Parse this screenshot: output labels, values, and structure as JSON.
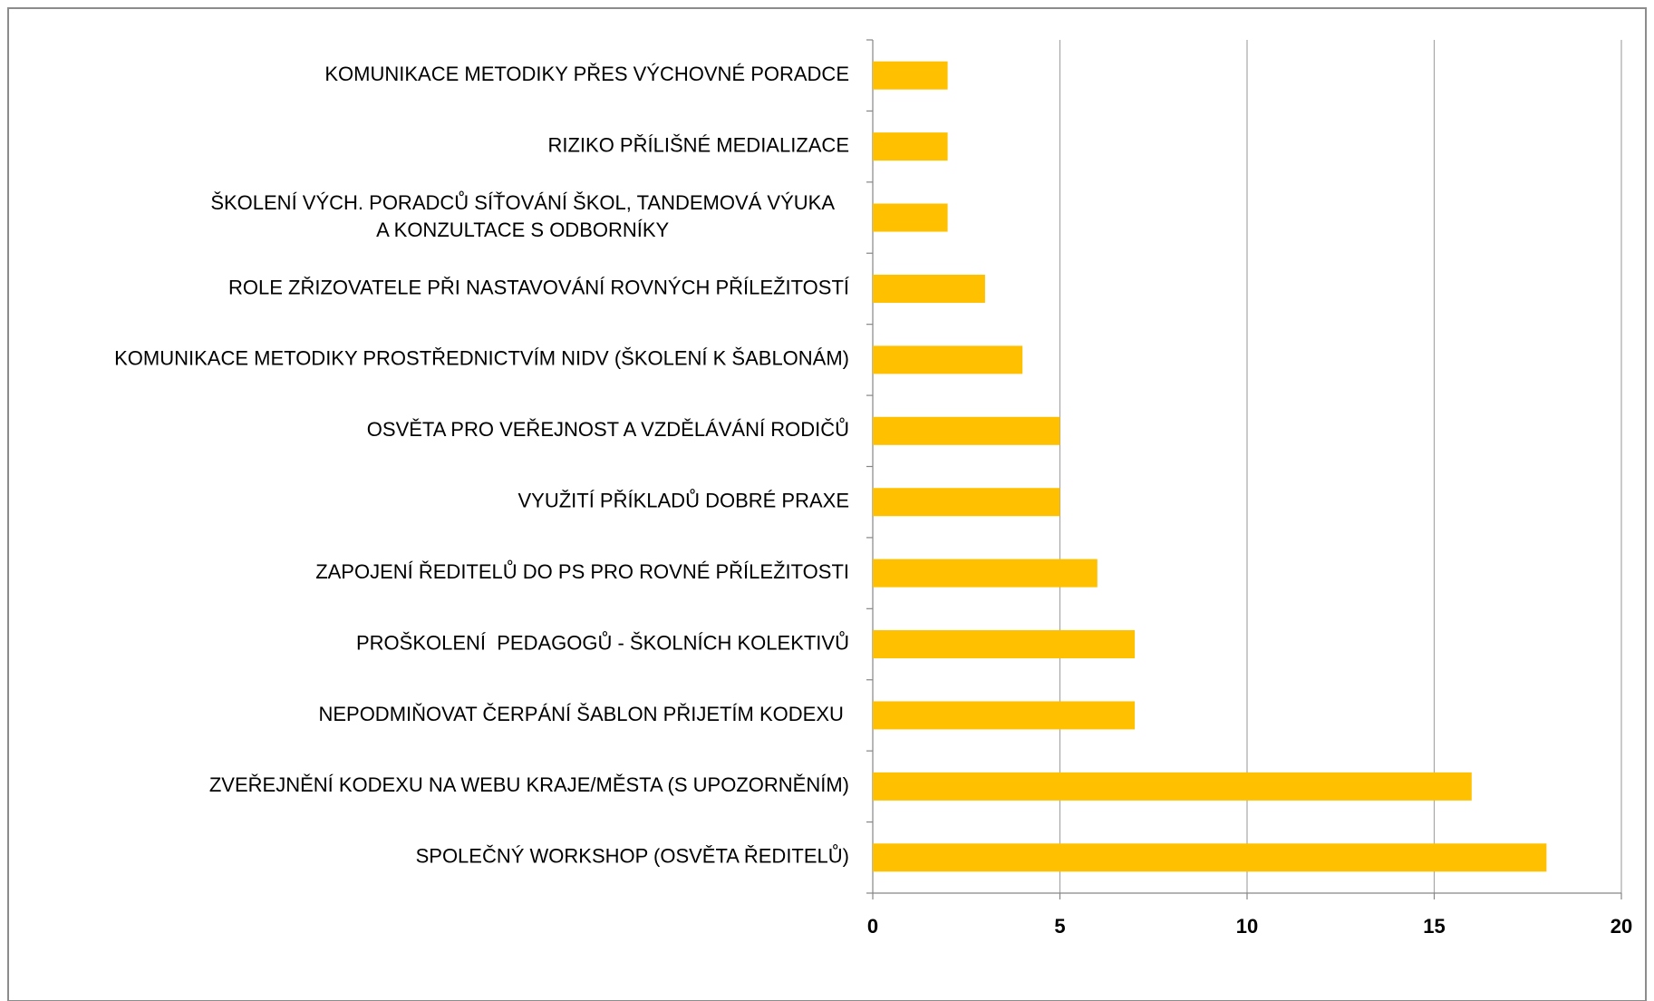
{
  "chart_data": {
    "type": "bar",
    "orientation": "horizontal",
    "categories": [
      "KOMUNIKACE METODIKY PŘES VÝCHOVNÉ PORADCE",
      "RIZIKO PŘÍLIŠNÉ MEDIALIZACE",
      "ŠKOLENÍ VÝCH. PORADCŮ SÍŤOVÁNÍ ŠKOL, TANDEMOVÁ VÝUKA\nA KONZULTACE S ODBORNÍKY",
      "ROLE ZŘIZOVATELE PŘI NASTAVOVÁNÍ ROVNÝCH PŘÍLEŽITOSTÍ",
      "KOMUNIKACE METODIKY PROSTŘEDNICTVÍM NIDV (ŠKOLENÍ K ŠABLONÁM)",
      "OSVĚTA PRO VEŘEJNOST A VZDĚLÁVÁNÍ RODIČŮ",
      "VYUŽITÍ PŘÍKLADŮ DOBRÉ PRAXE",
      "ZAPOJENÍ ŘEDITELŮ DO PS PRO ROVNÉ PŘÍLEŽITOSTI",
      "PROŠKOLENÍ  PEDAGOGŮ - ŠKOLNÍCH KOLEKTIVŮ",
      "NEPODMIŇOVAT ČERPÁNÍ ŠABLON PŘIJETÍM KODEXU ",
      "ZVEŘEJNĚNÍ KODEXU NA WEBU KRAJE/MĚSTA (S UPOZORNĚNÍM)",
      "SPOLEČNÝ WORKSHOP (OSVĚTA ŘEDITELŮ)"
    ],
    "values": [
      2,
      2,
      2,
      3,
      4,
      5,
      5,
      6,
      7,
      7,
      16,
      18
    ],
    "color": "#ffc000",
    "xlim": [
      0,
      20
    ],
    "xticks": [
      0,
      5,
      10,
      15,
      20
    ],
    "grid": true
  }
}
